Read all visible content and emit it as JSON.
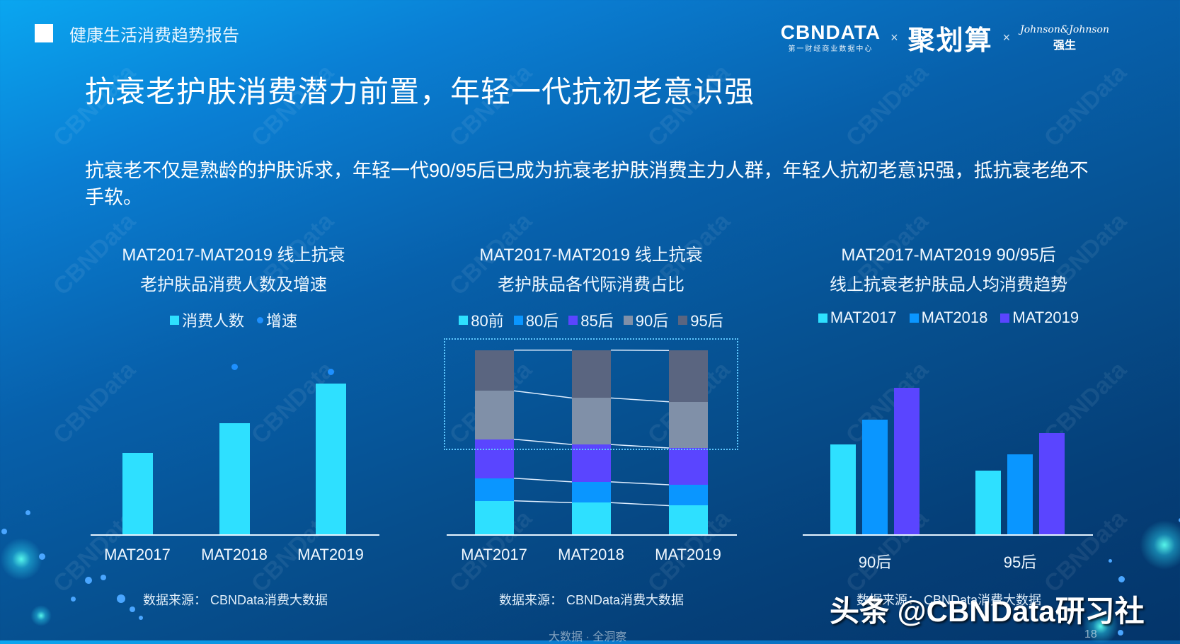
{
  "header": {
    "report_label": "健康生活消费趋势报告",
    "logos": {
      "cbndata": "CBNDATA",
      "cbndata_sub": "第一财经商业数据中心",
      "separator": "×",
      "juhuasuan": "聚划算",
      "jnj": "Johnson&Johnson",
      "jnj_sub": "强生"
    }
  },
  "title": "抗衰老护肤消费潜力前置，年轻一代抗初老意识强",
  "description": "抗衰老不仅是熟龄的护肤诉求，年轻一代90/95后已成为抗衰老护肤消费主力人群，年轻人抗初老意识强，抵抗衰老绝不手软。",
  "colors": {
    "cyan": "#2ee0ff",
    "blue": "#0a96ff",
    "purple": "#5a45ff",
    "gray": "#8090a8",
    "dark_gray": "#5a6580",
    "dot_blue": "#1e90ff"
  },
  "chart_data": [
    {
      "type": "bar",
      "title": "MAT2017-MAT2019 线上抗衰老护肤品消费人数及增速",
      "title_line1": "MAT2017-MAT2019 线上抗衰",
      "title_line2": "老护肤品消费人数及增速",
      "legend": [
        "消费人数",
        "增速"
      ],
      "categories": [
        "MAT2017",
        "MAT2018",
        "MAT2019"
      ],
      "series": [
        {
          "name": "消费人数",
          "kind": "bar",
          "values": [
            115,
            157,
            213
          ],
          "unit": "relative px height (no axis labels)"
        },
        {
          "name": "增速",
          "kind": "dot",
          "values": [
            null,
            237,
            230
          ],
          "unit": "relative px height above baseline (no axis labels)"
        }
      ],
      "xlabel": "",
      "ylabel": "",
      "grid": false,
      "source": "数据来源：  CBNData消费大数据"
    },
    {
      "type": "bar",
      "stacked": true,
      "title": "MAT2017-MAT2019 线上抗衰老护肤品各代际消费占比",
      "title_line1": "MAT2017-MAT2019 线上抗衰",
      "title_line2": "老护肤品各代际消费占比",
      "legend": [
        "80前",
        "80后",
        "85后",
        "90后",
        "95后"
      ],
      "categories": [
        "MAT2017",
        "MAT2018",
        "MAT2019"
      ],
      "series": [
        {
          "name": "80前",
          "values": [
            18.2,
            17.2,
            15.6
          ]
        },
        {
          "name": "80后",
          "values": [
            12.3,
            11.3,
            11.3
          ]
        },
        {
          "name": "85后",
          "values": [
            21.2,
            20.3,
            20.0
          ]
        },
        {
          "name": "90后",
          "values": [
            26.3,
            25.3,
            25.1
          ]
        },
        {
          "name": "95后",
          "values": [
            22.1,
            26.0,
            27.9
          ]
        }
      ],
      "ylim": [
        0,
        100
      ],
      "ylabel": "%",
      "grid": false,
      "annotation": "dotted highlight box around 90后 + 95后 segments",
      "source": "数据来源：  CBNData消费大数据"
    },
    {
      "type": "bar",
      "title": "MAT2017-MAT2019 90/95后线上抗衰老护肤品人均消费趋势",
      "title_line1": "MAT2017-MAT2019 90/95后",
      "title_line2": "线上抗衰老护肤品人均消费趋势",
      "legend": [
        "MAT2017",
        "MAT2018",
        "MAT2019"
      ],
      "categories": [
        "90后",
        "95后"
      ],
      "series": [
        {
          "name": "MAT2017",
          "values": [
            127,
            90
          ]
        },
        {
          "name": "MAT2018",
          "values": [
            162,
            113
          ]
        },
        {
          "name": "MAT2019",
          "values": [
            207,
            143
          ]
        }
      ],
      "unit": "relative px height (no axis labels)",
      "grid": false,
      "source": "数据来源：  CBNData消费大数据"
    }
  ],
  "footer": {
    "slogan": "大数据 · 全洞察",
    "page_number": "18",
    "watermark_overlay": "头条 @CBNData研习社",
    "bg_watermark": "CBNData"
  }
}
